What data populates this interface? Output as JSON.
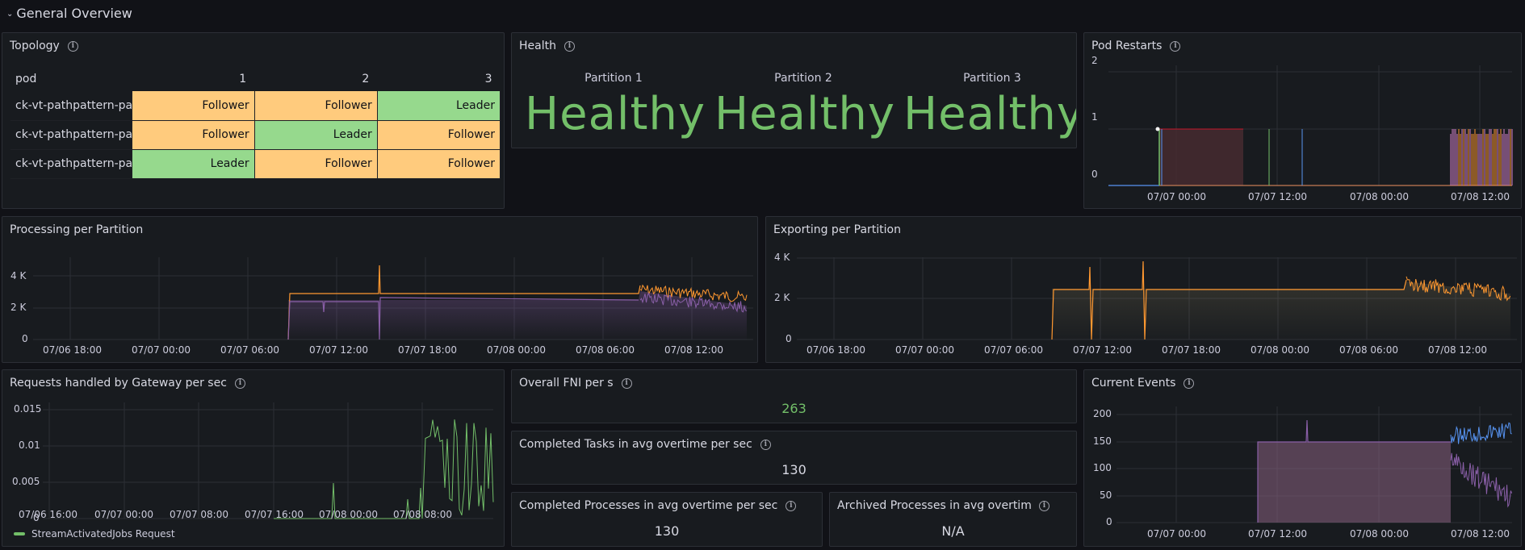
{
  "row": {
    "title": "General Overview"
  },
  "topology": {
    "title": "Topology",
    "headers": [
      "pod",
      "1",
      "2",
      "3"
    ],
    "rows": [
      {
        "pod": "ck-vt-pathpattern-pa",
        "cells": [
          "Follower",
          "Follower",
          "Leader"
        ]
      },
      {
        "pod": "ck-vt-pathpattern-pa",
        "cells": [
          "Follower",
          "Leader",
          "Follower"
        ]
      },
      {
        "pod": "ck-vt-pathpattern-pa",
        "cells": [
          "Leader",
          "Follower",
          "Follower"
        ]
      }
    ]
  },
  "health": {
    "title": "Health",
    "partitions": [
      {
        "label": "Partition 1",
        "status": "Healthy"
      },
      {
        "label": "Partition 2",
        "status": "Healthy"
      },
      {
        "label": "Partition 3",
        "status": "Healthy"
      }
    ],
    "status_color": "#73bf69"
  },
  "pod_restarts": {
    "title": "Pod Restarts",
    "y_ticks": [
      "2",
      "1",
      "0"
    ],
    "x_ticks": [
      "07/07 00:00",
      "07/07 12:00",
      "07/08 00:00",
      "07/08 12:00"
    ]
  },
  "processing": {
    "title": "Processing per Partition",
    "y_ticks": [
      "4 K",
      "2 K",
      "0"
    ],
    "x_ticks": [
      "07/06 18:00",
      "07/07 00:00",
      "07/07 06:00",
      "07/07 12:00",
      "07/07 18:00",
      "07/08 00:00",
      "07/08 06:00",
      "07/08 12:00"
    ]
  },
  "exporting": {
    "title": "Exporting per Partition",
    "y_ticks": [
      "4 K",
      "2 K",
      "0"
    ],
    "x_ticks": [
      "07/06 18:00",
      "07/07 00:00",
      "07/07 06:00",
      "07/07 12:00",
      "07/07 18:00",
      "07/08 00:00",
      "07/08 06:00",
      "07/08 12:00"
    ]
  },
  "gateway": {
    "title": "Requests handled by Gateway per sec",
    "y_ticks": [
      "0.015",
      "0.01",
      "0.005",
      "0"
    ],
    "x_ticks": [
      "07/06 16:00",
      "07/07 00:00",
      "07/07 08:00",
      "07/07 16:00",
      "07/08 00:00",
      "07/08 08:00"
    ],
    "legend": "StreamActivatedJobs Request"
  },
  "fni": {
    "title": "Overall FNI per s",
    "value": "263",
    "value_color": "#73bf69"
  },
  "completed_tasks": {
    "title": "Completed Tasks in avg overtime per sec",
    "value": "130"
  },
  "completed_processes": {
    "title": "Completed Processes in avg overtime per sec",
    "value": "130"
  },
  "archived_processes": {
    "title": "Archived Processes in avg overtime",
    "value": "N/A"
  },
  "current_events": {
    "title": "Current Events",
    "y_ticks": [
      "200",
      "150",
      "100",
      "50",
      "0"
    ],
    "x_ticks": [
      "07/07 00:00",
      "07/07 12:00",
      "07/08 00:00",
      "07/08 12:00"
    ]
  }
}
